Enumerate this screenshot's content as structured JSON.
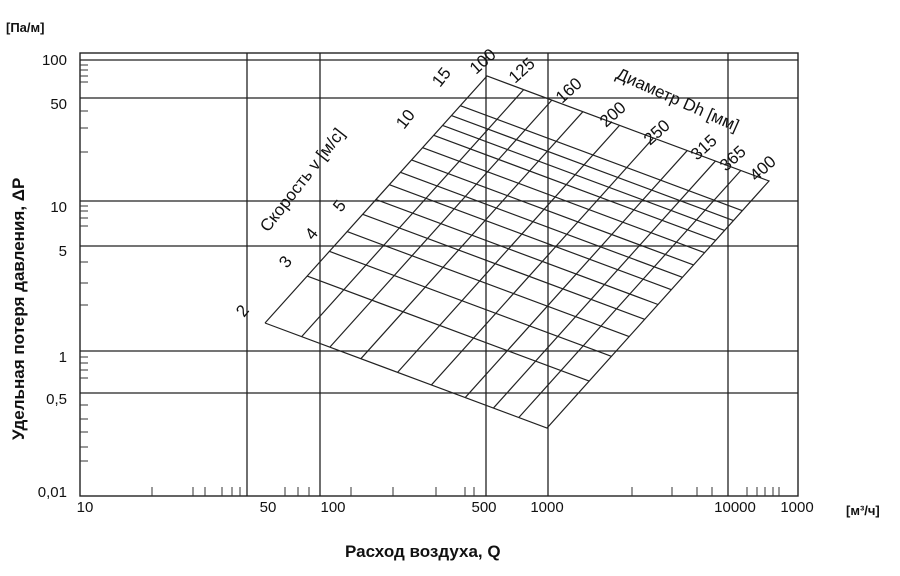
{
  "chart_data": {
    "type": "line",
    "title": "",
    "y_unit": "[Па/м]",
    "x_unit": "[м³/ч]",
    "xlabel": "Расход воздуха, Q",
    "ylabel": "Удельная потеря давления, ΔP",
    "x_scale": "log",
    "y_scale": "log",
    "x_ticks": [
      "10",
      "50",
      "100",
      "500",
      "1000",
      "10000",
      "1000"
    ],
    "y_ticks": [
      "100",
      "50",
      "10",
      "5",
      "1",
      "0,5",
      "0,01"
    ],
    "x_major_gridlines": [
      40,
      100,
      500,
      1000,
      10000
    ],
    "y_major_gridlines": [
      100,
      50,
      10,
      5,
      1,
      0.5
    ],
    "velocity_title": "Скорость v [м/с]",
    "velocity_labels": [
      "2",
      "3",
      "4",
      "5",
      "10",
      "15"
    ],
    "diameter_title": "Диаметр Dh [мм]",
    "diameter_labels": [
      "100",
      "125",
      "160",
      "200",
      "250",
      "315",
      "365",
      "400"
    ],
    "grid": true
  }
}
